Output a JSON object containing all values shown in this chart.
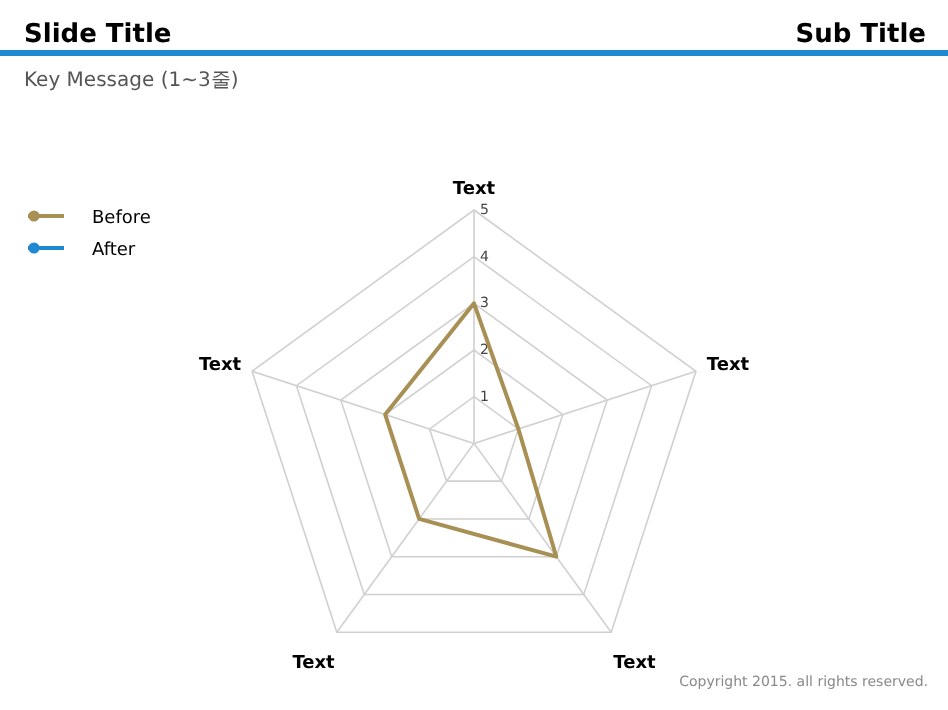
{
  "chart_data": {
    "type": "radar",
    "title": "Slide Title",
    "subtitle": "Sub Title",
    "annotations": [
      "Key Message (1~3줄)",
      "Copyright 2015. all rights reserved."
    ],
    "categories": [
      "Text",
      "Text",
      "Text",
      "Text",
      "Text"
    ],
    "series": [
      {
        "name": "Before",
        "color": "#a88f54",
        "values": [
          3,
          1,
          3,
          2,
          2
        ]
      },
      {
        "name": "After",
        "color": "#1e88d0",
        "values": [
          null,
          null,
          null,
          null,
          null
        ]
      }
    ],
    "ylim": [
      0,
      5
    ],
    "yticks": [
      1,
      2,
      3,
      4,
      5
    ],
    "grid": true,
    "legend": "top left"
  }
}
